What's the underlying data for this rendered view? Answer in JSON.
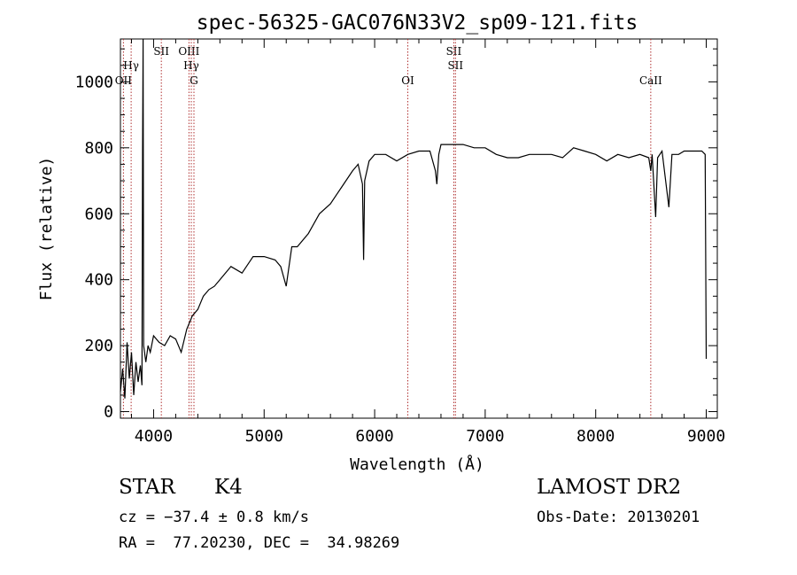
{
  "chart_data": {
    "type": "line",
    "title": "spec-56325-GAC076N33V2_sp09-121.fits",
    "xlabel": "Wavelength (Å)",
    "ylabel": "Flux (relative)",
    "xlim": [
      3700,
      9100
    ],
    "ylim": [
      -20,
      1130
    ],
    "x_ticks": [
      4000,
      5000,
      6000,
      7000,
      8000,
      9000
    ],
    "y_ticks": [
      0,
      200,
      400,
      600,
      800,
      1000
    ],
    "grid": false,
    "line_color": "#000000",
    "marker_color": "#b03030",
    "spectrum": [
      [
        3700,
        60
      ],
      [
        3720,
        130
      ],
      [
        3740,
        40
      ],
      [
        3760,
        210
      ],
      [
        3780,
        100
      ],
      [
        3800,
        180
      ],
      [
        3820,
        50
      ],
      [
        3840,
        150
      ],
      [
        3860,
        90
      ],
      [
        3880,
        140
      ],
      [
        3895,
        80
      ],
      [
        3900,
        790
      ],
      [
        3905,
        1130
      ],
      [
        3910,
        200
      ],
      [
        3930,
        150
      ],
      [
        3950,
        200
      ],
      [
        3970,
        180
      ],
      [
        4000,
        230
      ],
      [
        4050,
        210
      ],
      [
        4100,
        200
      ],
      [
        4150,
        230
      ],
      [
        4200,
        220
      ],
      [
        4250,
        180
      ],
      [
        4300,
        250
      ],
      [
        4350,
        290
      ],
      [
        4400,
        310
      ],
      [
        4450,
        350
      ],
      [
        4500,
        370
      ],
      [
        4550,
        380
      ],
      [
        4600,
        400
      ],
      [
        4700,
        440
      ],
      [
        4800,
        420
      ],
      [
        4900,
        470
      ],
      [
        5000,
        470
      ],
      [
        5100,
        460
      ],
      [
        5150,
        440
      ],
      [
        5200,
        380
      ],
      [
        5250,
        500
      ],
      [
        5300,
        500
      ],
      [
        5400,
        540
      ],
      [
        5500,
        600
      ],
      [
        5600,
        630
      ],
      [
        5700,
        680
      ],
      [
        5800,
        730
      ],
      [
        5850,
        750
      ],
      [
        5890,
        690
      ],
      [
        5900,
        460
      ],
      [
        5910,
        700
      ],
      [
        5950,
        760
      ],
      [
        6000,
        780
      ],
      [
        6100,
        780
      ],
      [
        6200,
        760
      ],
      [
        6300,
        780
      ],
      [
        6400,
        790
      ],
      [
        6500,
        790
      ],
      [
        6550,
        730
      ],
      [
        6563,
        690
      ],
      [
        6580,
        780
      ],
      [
        6600,
        810
      ],
      [
        6700,
        810
      ],
      [
        6800,
        810
      ],
      [
        6900,
        800
      ],
      [
        7000,
        800
      ],
      [
        7100,
        780
      ],
      [
        7200,
        770
      ],
      [
        7300,
        770
      ],
      [
        7400,
        780
      ],
      [
        7500,
        780
      ],
      [
        7600,
        780
      ],
      [
        7700,
        770
      ],
      [
        7800,
        800
      ],
      [
        7900,
        790
      ],
      [
        8000,
        780
      ],
      [
        8100,
        760
      ],
      [
        8200,
        780
      ],
      [
        8300,
        770
      ],
      [
        8400,
        780
      ],
      [
        8480,
        770
      ],
      [
        8498,
        730
      ],
      [
        8510,
        780
      ],
      [
        8542,
        590
      ],
      [
        8560,
        770
      ],
      [
        8600,
        790
      ],
      [
        8662,
        620
      ],
      [
        8690,
        780
      ],
      [
        8750,
        780
      ],
      [
        8800,
        790
      ],
      [
        8850,
        790
      ],
      [
        8900,
        790
      ],
      [
        8960,
        790
      ],
      [
        8990,
        780
      ],
      [
        9000,
        160
      ]
    ],
    "line_markers": [
      {
        "label": "OII",
        "x": 3727
      },
      {
        "label": "Hγ",
        "x": 3797
      },
      {
        "label": "SII",
        "x": 4070
      },
      {
        "label": "OIII",
        "x": 4320
      },
      {
        "label": "Hγ",
        "x": 4341
      },
      {
        "label": "G",
        "x": 4365
      },
      {
        "label": "OI",
        "x": 6300
      },
      {
        "label": "SII",
        "x": 6716
      },
      {
        "label": "SII",
        "x": 6731
      },
      {
        "label": "CaII",
        "x": 8498
      }
    ]
  },
  "info": {
    "object_type": "STAR",
    "subclass": "K4",
    "cz": "cz = −37.4 ± 0.8 km/s",
    "coords": "RA =  77.20230, DEC =  34.98269",
    "survey": "LAMOST DR2",
    "obs_date": "Obs-Date: 20130201"
  }
}
